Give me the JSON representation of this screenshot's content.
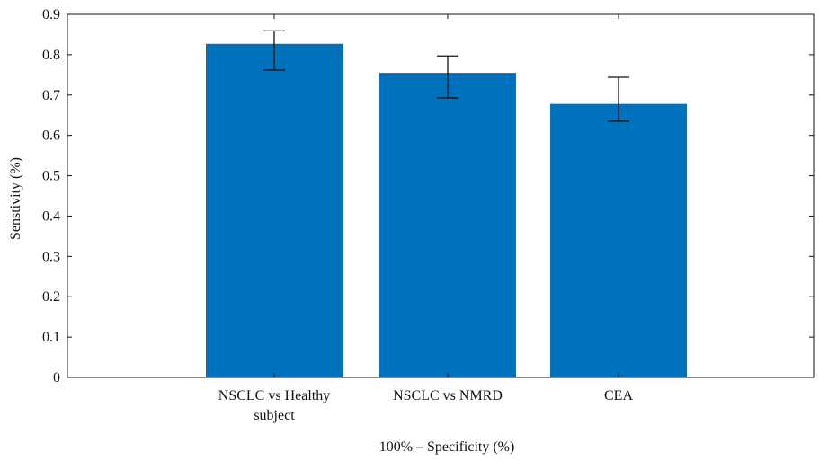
{
  "chart_data": {
    "type": "bar",
    "categories": [
      [
        "NSCLC vs Healthy",
        "subject"
      ],
      [
        "NSCLC vs NMRD"
      ],
      [
        "CEA"
      ]
    ],
    "values": [
      0.827,
      0.755,
      0.678
    ],
    "error_bars": [
      {
        "lower": 0.762,
        "upper": 0.859
      },
      {
        "lower": 0.693,
        "upper": 0.797
      },
      {
        "lower": 0.635,
        "upper": 0.744
      }
    ],
    "xlabel": "100% – Specificity (%)",
    "ylabel": "Senstivity (%)",
    "ylim": [
      0,
      0.9
    ],
    "yticks": [
      "0",
      "0.1",
      "0.2",
      "0.3",
      "0.4",
      "0.5",
      "0.6",
      "0.7",
      "0.8",
      "0.9"
    ],
    "bar_color": "#0072bd",
    "grid": false,
    "box": true
  }
}
